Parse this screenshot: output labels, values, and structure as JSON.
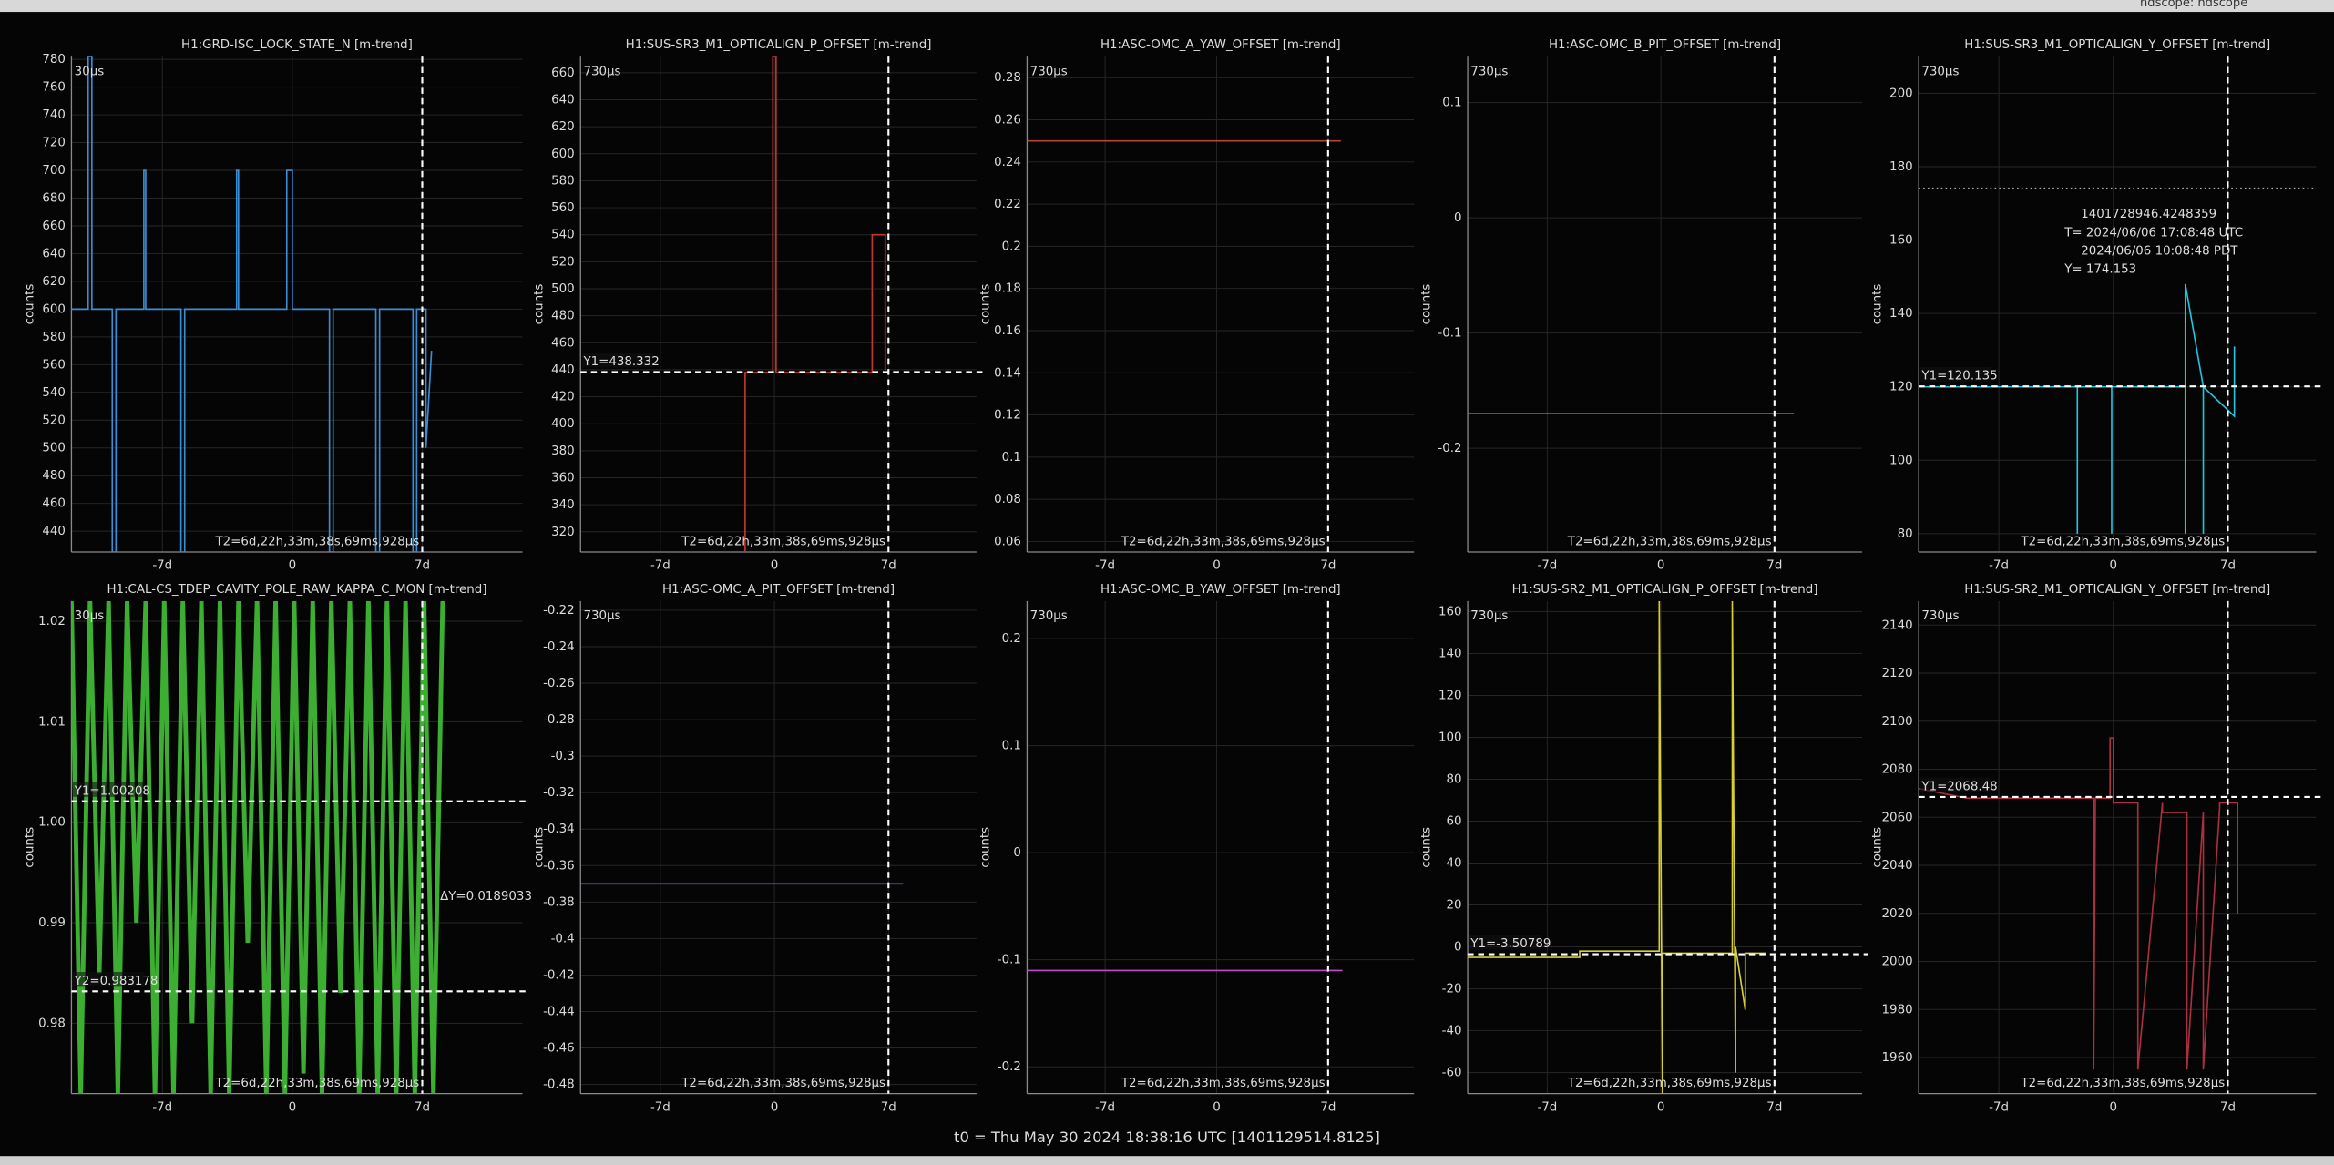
{
  "window_title": "ndscope: ndscope",
  "footer": "t0 = Thu May 30 2024 18:38:16 UTC [1401129514.8125]",
  "xlim": [
    -11.9,
    12.4
  ],
  "xticks": [
    {
      "value": -7,
      "label": "-7d"
    },
    0,
    {
      "value": 7,
      "label": "7d"
    }
  ],
  "plots": [
    {
      "title": "H1:GRD-ISC_LOCK_STATE_N [m-trend]",
      "y_label": "counts",
      "corner_label": "30µs",
      "ylim": [
        425,
        782
      ],
      "yticks": [
        440,
        460,
        480,
        500,
        520,
        540,
        560,
        580,
        600,
        620,
        640,
        660,
        680,
        700,
        720,
        740,
        760,
        780
      ],
      "t2": 7,
      "t2_label": "T2=6d,22h,33m,38s,69ms,928µs",
      "series": [
        {
          "color": "#3b8ed6",
          "x": [
            -11.9,
            -11,
            -11,
            -10.8,
            -10.8,
            -9.7,
            -9.7,
            -9.5,
            -9.5,
            -8,
            -8,
            -7.9,
            -7.9,
            -6,
            -6,
            -5.8,
            -5.8,
            -3,
            -3,
            -2.9,
            -2.9,
            -0.3,
            -0.3,
            0,
            0,
            2,
            2,
            2.2,
            2.2,
            4.5,
            4.5,
            4.7,
            4.7,
            6.5,
            6.5,
            6.7,
            6.7,
            7.2,
            7.2,
            7.5
          ],
          "values": [
            600,
            600,
            782,
            782,
            600,
            600,
            425,
            425,
            600,
            600,
            700,
            700,
            600,
            600,
            425,
            425,
            600,
            600,
            700,
            700,
            600,
            600,
            700,
            700,
            600,
            600,
            425,
            425,
            600,
            600,
            425,
            425,
            600,
            600,
            425,
            425,
            600,
            600,
            500,
            570
          ]
        }
      ]
    },
    {
      "title": "H1:SUS-SR3_M1_OPTICALIGN_P_OFFSET [m-trend]",
      "y_label": "counts",
      "corner_label": "730µs",
      "ylim": [
        305,
        672
      ],
      "yticks": [
        320,
        340,
        360,
        380,
        400,
        420,
        440,
        460,
        480,
        500,
        520,
        540,
        560,
        580,
        600,
        620,
        640,
        660
      ],
      "t2": 7,
      "t2_label": "T2=6d,22h,33m,38s,69ms,928µs",
      "y1": 438.332,
      "y1_label": "Y1=438.332",
      "series": [
        {
          "color": "#c0392b",
          "x": [
            -1.8,
            -1.8,
            -0.1,
            -0.1,
            0.1,
            0.1,
            6.0,
            6.0,
            6.8,
            6.8
          ],
          "values": [
            305,
            438,
            438,
            672,
            672,
            438,
            438,
            540,
            540,
            440
          ]
        }
      ]
    },
    {
      "title": "H1:ASC-OMC_A_YAW_OFFSET [m-trend]",
      "y_label": "counts",
      "corner_label": "730µs",
      "ylim": [
        0.055,
        0.29
      ],
      "yticks": [
        0.06,
        0.08,
        0.1,
        0.12,
        0.14,
        0.16,
        0.18,
        0.2,
        0.22,
        0.24,
        0.26,
        0.28
      ],
      "t2": 7,
      "t2_label": "T2=6d,22h,33m,38s,69ms,928µs",
      "series": [
        {
          "color": "#b5443a",
          "x": [
            -11.9,
            7.8
          ],
          "values": [
            0.25,
            0.25
          ]
        }
      ]
    },
    {
      "title": "H1:ASC-OMC_B_PIT_OFFSET [m-trend]",
      "y_label": "counts",
      "corner_label": "730µs",
      "ylim": [
        -0.29,
        0.14
      ],
      "yticks": [
        -0.2,
        -0.1,
        0,
        0.1
      ],
      "t2": 7,
      "t2_label": "T2=6d,22h,33m,38s,69ms,928µs",
      "series": [
        {
          "color": "#888888",
          "x": [
            -11.9,
            8.2
          ],
          "values": [
            -0.17,
            -0.17
          ]
        }
      ]
    },
    {
      "title": "H1:SUS-SR3_M1_OPTICALIGN_Y_OFFSET [m-trend]",
      "y_label": "counts",
      "corner_label": "730µs",
      "ylim": [
        75,
        210
      ],
      "yticks": [
        80,
        100,
        120,
        140,
        160,
        180,
        200
      ],
      "t2": 7,
      "t2_label": "T2=6d,22h,33m,38s,69ms,928µs",
      "y1": 120.135,
      "y1_label": "Y1=120.135",
      "hover_y": 174.153,
      "hover_lines": [
        "1401728946.4248359",
        "T= 2024/06/06 17:08:48 UTC",
        "2024/06/06 10:08:48 PDT",
        "Y= 174.153"
      ],
      "series": [
        {
          "color": "#22c4e0",
          "x": [
            -11.9,
            -2.2,
            -2.2,
            -2.2,
            -0.1,
            -0.1,
            -0.1,
            4.4,
            4.4,
            4.4,
            5.5,
            5.5,
            5.5,
            7.4,
            7.4
          ],
          "values": [
            120,
            120,
            80,
            120,
            120,
            80,
            120,
            120,
            80,
            148,
            120,
            80,
            120,
            112,
            131
          ]
        }
      ]
    },
    {
      "title": "H1:CAL-CS_TDEP_CAVITY_POLE_RAW_KAPPA_C_MON [m-trend]",
      "y_label": "counts",
      "corner_label": "30µs",
      "ylim": [
        0.973,
        1.022
      ],
      "yticks": [
        0.98,
        0.99,
        {
          "value": 1,
          "label": "1.00"
        },
        1.01,
        1.02
      ],
      "t2": 7,
      "t2_label": "T2=6d,22h,33m,38s,69ms,928µs",
      "y1": 1.00208,
      "y1_label": "Y1=1.00208",
      "y2": 0.983178,
      "y2_label": "Y2=0.983178",
      "dy_label": "ΔY=0.0189033",
      "series": [
        {
          "color": "#3cae32",
          "x": [
            -11.9,
            -11.4,
            -10.9,
            -10.4,
            -9.9,
            -9.4,
            -8.9,
            -8.4,
            -7.9,
            -7.4,
            -6.9,
            -6.4,
            -5.9,
            -5.4,
            -4.9,
            -4.4,
            -3.9,
            -3.4,
            -2.9,
            -2.4,
            -1.9,
            -1.4,
            -0.9,
            -0.4,
            0.1,
            0.6,
            1.1,
            1.6,
            2.1,
            2.6,
            3.1,
            3.6,
            4.1,
            4.6,
            5.1,
            5.6,
            6.1,
            6.6,
            7.1,
            7.6,
            8.1
          ],
          "values": [
            1.022,
            0.973,
            1.022,
            0.985,
            1.022,
            0.973,
            1.022,
            0.99,
            1.022,
            0.973,
            1.022,
            0.973,
            1.022,
            0.98,
            1.022,
            0.973,
            1.022,
            0.973,
            1.022,
            0.988,
            1.022,
            0.973,
            1.022,
            0.973,
            1.022,
            0.975,
            1.022,
            0.973,
            1.022,
            0.983,
            1.022,
            0.973,
            1.022,
            0.973,
            1.022,
            0.973,
            1.022,
            0.973,
            1.022,
            0.973,
            1.022
          ]
        }
      ]
    },
    {
      "title": "H1:ASC-OMC_A_PIT_OFFSET [m-trend]",
      "y_label": "counts",
      "corner_label": "730µs",
      "ylim": [
        -0.485,
        -0.215
      ],
      "yticks": [
        -0.48,
        -0.46,
        -0.44,
        -0.42,
        -0.4,
        -0.38,
        -0.36,
        -0.34,
        -0.32,
        -0.3,
        -0.28,
        -0.26,
        -0.24,
        -0.22
      ],
      "t2": 7,
      "t2_label": "T2=6d,22h,33m,38s,69ms,928µs",
      "series": [
        {
          "color": "#8a5cd0",
          "x": [
            -11.9,
            7.9
          ],
          "values": [
            -0.37,
            -0.37
          ]
        }
      ]
    },
    {
      "title": "H1:ASC-OMC_B_YAW_OFFSET [m-trend]",
      "y_label": "counts",
      "corner_label": "730µs",
      "ylim": [
        -0.225,
        0.235
      ],
      "yticks": [
        -0.2,
        -0.1,
        0,
        0.1,
        0.2
      ],
      "t2": 7,
      "t2_label": "T2=6d,22h,33m,38s,69ms,928µs",
      "series": [
        {
          "color": "#c04ec8",
          "x": [
            -11.9,
            7.9
          ],
          "values": [
            -0.11,
            -0.11
          ]
        }
      ]
    },
    {
      "title": "H1:SUS-SR2_M1_OPTICALIGN_P_OFFSET [m-trend]",
      "y_label": "counts",
      "corner_label": "730µs",
      "ylim": [
        -70,
        165
      ],
      "yticks": [
        -60,
        -40,
        -20,
        0,
        20,
        40,
        60,
        80,
        100,
        120,
        140,
        160
      ],
      "t2": 7,
      "t2_label": "T2=6d,22h,33m,38s,69ms,928µs",
      "y1": -3.50789,
      "y1_label": "Y1=-3.50789",
      "series": [
        {
          "color": "#d8d030",
          "x": [
            -11.9,
            -5,
            -5,
            -0.1,
            -0.1,
            0.1,
            0.1,
            4.4,
            4.4,
            4.6,
            4.6,
            5.2,
            5.2,
            6.5
          ],
          "values": [
            -5,
            -5,
            -2,
            -2,
            165,
            -70,
            -3,
            -3,
            165,
            -60,
            0,
            -30,
            -3,
            -3
          ]
        }
      ]
    },
    {
      "title": "H1:SUS-SR2_M1_OPTICALIGN_Y_OFFSET [m-trend]",
      "y_label": "counts",
      "corner_label": "730µs",
      "ylim": [
        1945,
        2150
      ],
      "yticks": [
        1960,
        1980,
        2000,
        2020,
        2040,
        2060,
        2080,
        2100,
        2120,
        2140
      ],
      "t2": 7,
      "t2_label": "T2=6d,22h,33m,38s,69ms,928µs",
      "y1": 2068.48,
      "y1_label": "Y1=2068.48",
      "series": [
        {
          "color": "#a83040",
          "x": [
            -11.9,
            -9,
            -9,
            -1.2,
            -1.2,
            -1.1,
            -0.2,
            -0.2,
            0,
            0,
            1.5,
            1.5,
            3,
            3,
            4.5,
            4.5,
            5.5,
            5.5,
            6.5,
            6.5,
            7.6,
            7.6
          ],
          "values": [
            2072,
            2068,
            2068,
            2068,
            1955,
            2068,
            2068,
            2093,
            2093,
            2066,
            2066,
            1955,
            2066,
            2062,
            2062,
            1955,
            2062,
            1955,
            2064,
            2066,
            2066,
            2020
          ]
        }
      ]
    }
  ]
}
